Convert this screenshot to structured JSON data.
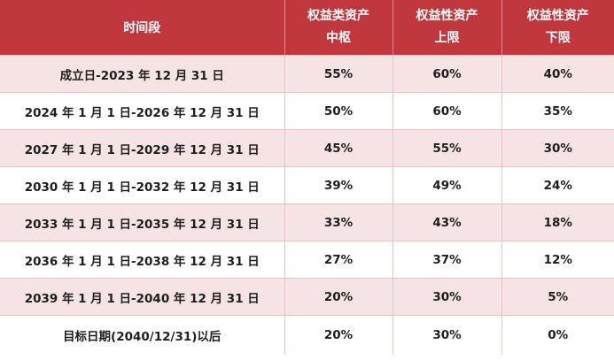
{
  "header": {
    "period": "时间段",
    "equity_center_line1": "权益类资产",
    "equity_center_line2": "中枢",
    "equity_upper_line1": "权益性资产",
    "equity_upper_line2": "上限",
    "equity_lower_line1": "权益性资产",
    "equity_lower_line2": "下限"
  },
  "rows": [
    {
      "period": "成立日-2023 年 12 月 31 日",
      "center": "55%",
      "upper": "60%",
      "lower": "40%"
    },
    {
      "period": "2024 年 1 月 1 日-2026 年 12 月 31 日",
      "center": "50%",
      "upper": "60%",
      "lower": "35%"
    },
    {
      "period": "2027 年 1 月 1 日-2029 年 12 月 31 日",
      "center": "45%",
      "upper": "55%",
      "lower": "30%"
    },
    {
      "period": "2030 年 1 月 1 日-2032 年 12 月 31 日",
      "center": "39%",
      "upper": "49%",
      "lower": "24%"
    },
    {
      "period": "2033 年 1 月 1 日-2035 年 12 月 31 日",
      "center": "33%",
      "upper": "43%",
      "lower": "18%"
    },
    {
      "period": "2036 年 1 月 1 日-2038 年 12 月 31 日",
      "center": "27%",
      "upper": "37%",
      "lower": "12%"
    },
    {
      "period": "2039 年 1 月 1 日-2040 年 12 月 31 日",
      "center": "20%",
      "upper": "30%",
      "lower": "5%"
    },
    {
      "period": "目标日期(2040/12/31)以后",
      "center": "20%",
      "upper": "30%",
      "lower": "0%"
    }
  ],
  "colors": {
    "header_bg": "#c0383d",
    "header_text": "#ffffff",
    "stripe_bg": "#f6e3e4",
    "body_text": "#1e1e1e"
  }
}
